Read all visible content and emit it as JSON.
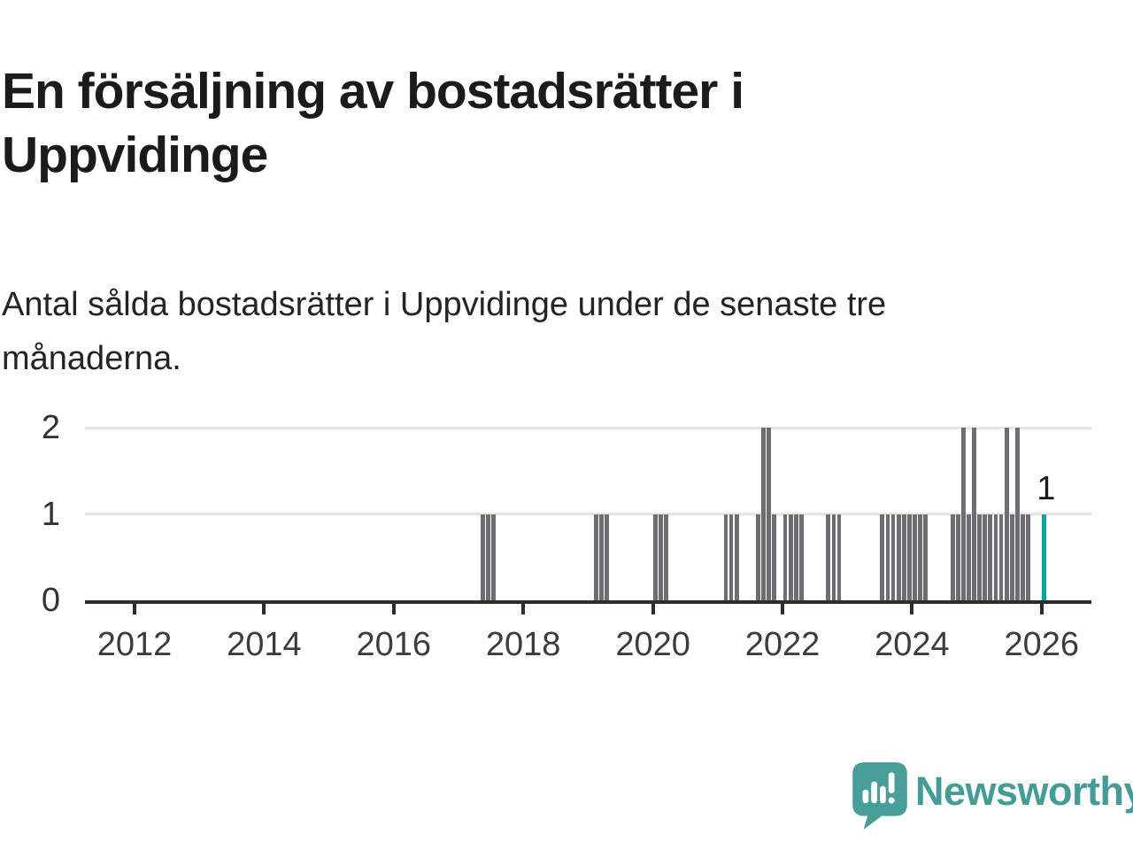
{
  "header": {
    "title": "En försäljning av bostadsrätter i Uppvidinge",
    "subtitle": "Antal sålda bostadsrätter i Uppvidinge under de senaste tre månaderna."
  },
  "chart_data": {
    "type": "bar",
    "title": "En försäljning av bostadsrätter i Uppvidinge",
    "xlabel": "",
    "ylabel": "",
    "ylim": [
      0,
      2
    ],
    "y_ticks": [
      0,
      1,
      2
    ],
    "x_ticks": [
      2012,
      2014,
      2016,
      2018,
      2020,
      2022,
      2024,
      2026
    ],
    "grid": "horizontal",
    "legend": "none",
    "bars": [
      {
        "month": "2017-05",
        "value": 1
      },
      {
        "month": "2017-06",
        "value": 1
      },
      {
        "month": "2017-07",
        "value": 1
      },
      {
        "month": "2019-02",
        "value": 1
      },
      {
        "month": "2019-03",
        "value": 1
      },
      {
        "month": "2019-04",
        "value": 1
      },
      {
        "month": "2020-01",
        "value": 1
      },
      {
        "month": "2020-02",
        "value": 1
      },
      {
        "month": "2020-03",
        "value": 1
      },
      {
        "month": "2021-02",
        "value": 1
      },
      {
        "month": "2021-03",
        "value": 1
      },
      {
        "month": "2021-04",
        "value": 1
      },
      {
        "month": "2021-08",
        "value": 1
      },
      {
        "month": "2021-09",
        "value": 2
      },
      {
        "month": "2021-10",
        "value": 2
      },
      {
        "month": "2021-11",
        "value": 1
      },
      {
        "month": "2022-01",
        "value": 1
      },
      {
        "month": "2022-02",
        "value": 1
      },
      {
        "month": "2022-03",
        "value": 1
      },
      {
        "month": "2022-04",
        "value": 1
      },
      {
        "month": "2022-09",
        "value": 1
      },
      {
        "month": "2022-10",
        "value": 1
      },
      {
        "month": "2022-11",
        "value": 1
      },
      {
        "month": "2023-07",
        "value": 1
      },
      {
        "month": "2023-08",
        "value": 1
      },
      {
        "month": "2023-09",
        "value": 1
      },
      {
        "month": "2023-10",
        "value": 1
      },
      {
        "month": "2023-11",
        "value": 1
      },
      {
        "month": "2023-12",
        "value": 1
      },
      {
        "month": "2024-01",
        "value": 1
      },
      {
        "month": "2024-02",
        "value": 1
      },
      {
        "month": "2024-03",
        "value": 1
      },
      {
        "month": "2024-08",
        "value": 1
      },
      {
        "month": "2024-09",
        "value": 1
      },
      {
        "month": "2024-10",
        "value": 2
      },
      {
        "month": "2024-11",
        "value": 1
      },
      {
        "month": "2024-12",
        "value": 2
      },
      {
        "month": "2025-01",
        "value": 1
      },
      {
        "month": "2025-02",
        "value": 1
      },
      {
        "month": "2025-03",
        "value": 1
      },
      {
        "month": "2025-04",
        "value": 1
      },
      {
        "month": "2025-05",
        "value": 1
      },
      {
        "month": "2025-06",
        "value": 2
      },
      {
        "month": "2025-07",
        "value": 1
      },
      {
        "month": "2025-08",
        "value": 2
      },
      {
        "month": "2025-09",
        "value": 1
      },
      {
        "month": "2025-10",
        "value": 1
      },
      {
        "month": "2026-01",
        "value": 1,
        "highlight": true
      }
    ],
    "annotation": {
      "label": "1",
      "month": "2026-01"
    },
    "colors": {
      "bar": "#6d6d72",
      "highlight": "#0ba5a1",
      "grid": "#e5e5e5",
      "axis": "#2d2d2d",
      "tick_label": "#3c3c3c"
    }
  },
  "footer": {
    "brand": "Newsworthy",
    "logo_icon": "newsworthy-speech-bubble-chart-icon",
    "brand_color": "#459c96",
    "icon_color": "#4a9e99"
  }
}
